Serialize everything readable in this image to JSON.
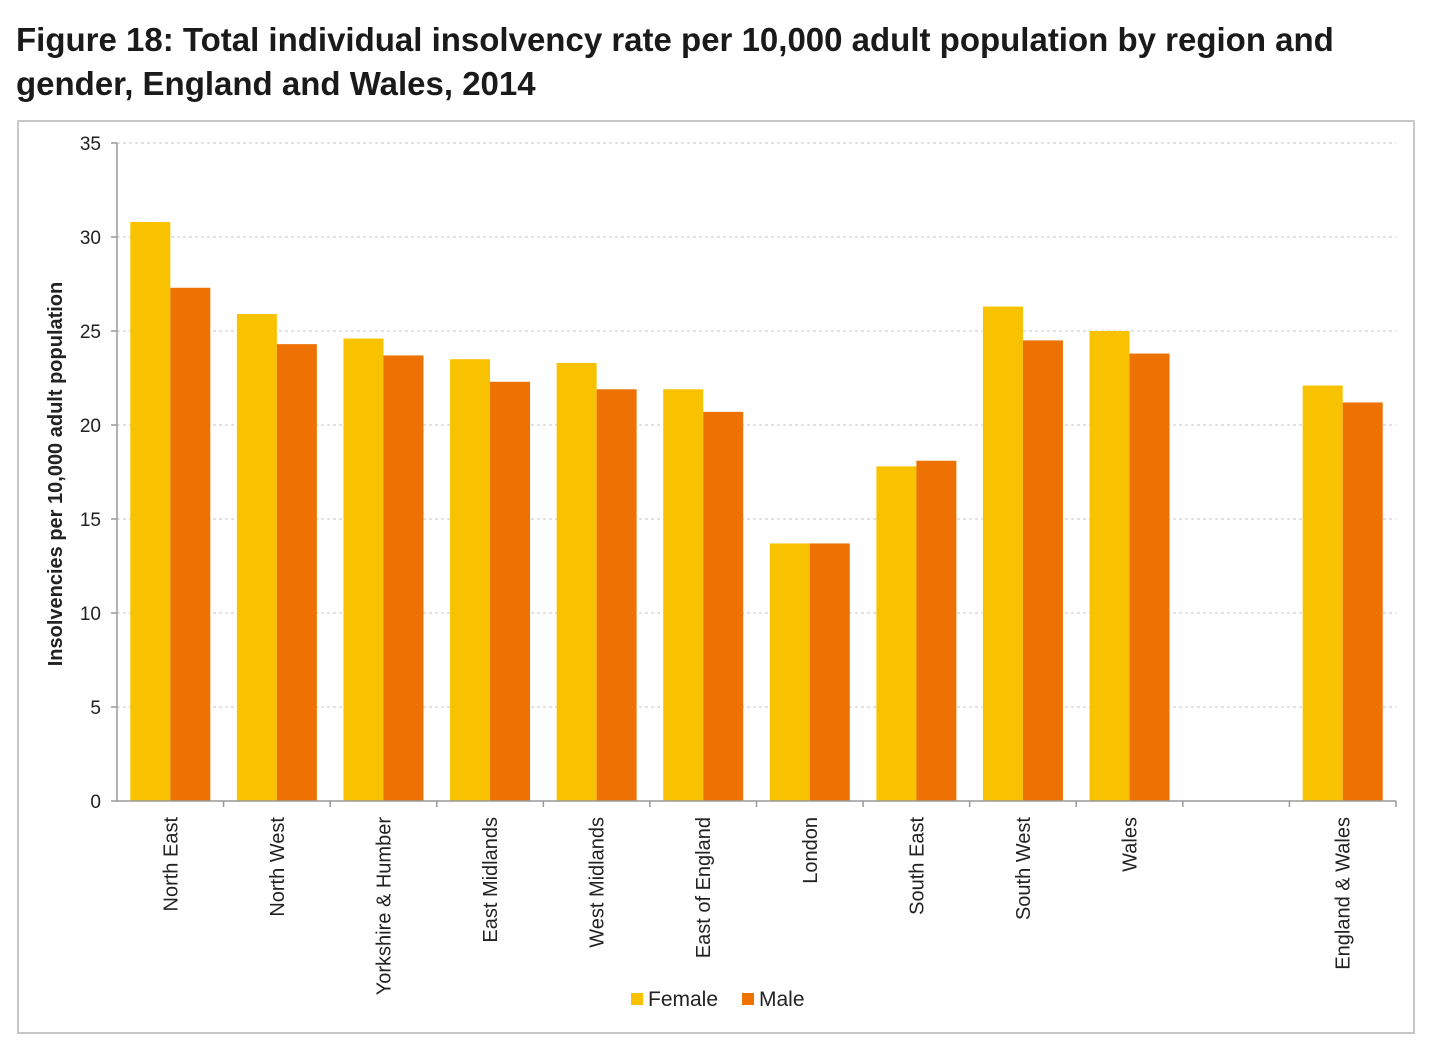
{
  "figure": {
    "title": "Figure 18: Total individual insolvency rate per 10,000 adult population by region and gender, England and Wales, 2014"
  },
  "colors": {
    "female": "#F9C200",
    "male": "#EE7203",
    "grid": "#d9d9d9",
    "axis": "#999999"
  },
  "chart_data": {
    "type": "bar",
    "title": "",
    "xlabel": "",
    "ylabel": "Insolvencies per 10,000 adult population",
    "ylim": [
      0,
      35
    ],
    "yticks": [
      0,
      5,
      10,
      15,
      20,
      25,
      30,
      35
    ],
    "grid": true,
    "legend_position": "bottom",
    "categories": [
      "North East",
      "North West",
      "Yorkshire & Humber",
      "East Midlands",
      "West Midlands",
      "East of England",
      "London",
      "South East",
      "South West",
      "Wales",
      "",
      "England & Wales"
    ],
    "series": [
      {
        "name": "Female",
        "color": "#F9C200",
        "values": [
          30.8,
          25.9,
          24.6,
          23.5,
          23.3,
          21.9,
          13.7,
          17.8,
          26.3,
          25.0,
          null,
          22.1
        ]
      },
      {
        "name": "Male",
        "color": "#EE7203",
        "values": [
          27.3,
          24.3,
          23.7,
          22.3,
          21.9,
          20.7,
          13.7,
          18.1,
          24.5,
          23.8,
          null,
          21.2
        ]
      }
    ]
  }
}
